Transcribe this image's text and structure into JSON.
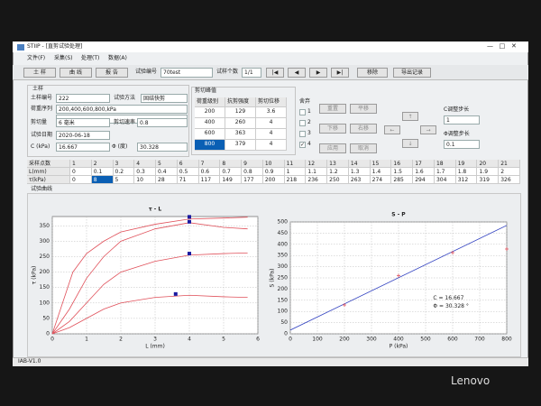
{
  "window": {
    "title": "STIIP - [直剪试验处理]"
  },
  "menu": [
    "文件(F)",
    "采集(S)",
    "处理(T)",
    "数据(A)"
  ],
  "toolbar": {
    "buttons": [
      "土 样",
      "曲 线",
      "报 告"
    ],
    "test_no_label": "试验编号",
    "test_no": "70test",
    "count_label": "试样个数",
    "count": "1/1",
    "nav": [
      "|◀",
      "◀",
      "▶",
      "▶|"
    ],
    "remove": "移除",
    "export": "导出记录"
  },
  "soil": {
    "group": "土样",
    "id_label": "土样编号",
    "id": "222",
    "method_label": "试验方法",
    "method": "固结快剪",
    "loads_label": "荷重序列",
    "loads": "200,400,600,800,kPa",
    "shear_label": "剪切量",
    "shear": "6 毫米",
    "rate_label": "剪切速率",
    "rate": "0.8",
    "date_label": "试验日期",
    "date": "2020-06-18",
    "c_label": "C (kPa)",
    "c": 16.667,
    "phi_label": "Φ (度)",
    "phi": 30.328
  },
  "shear_peak": {
    "group": "剪切峰值",
    "headers": [
      "荷重级别",
      "抗剪强度",
      "剪切位移"
    ],
    "rows": [
      [
        200,
        129,
        3.6
      ],
      [
        400,
        260,
        4
      ],
      [
        600,
        363,
        4
      ],
      [
        800,
        379,
        4
      ]
    ]
  },
  "discard": {
    "label": "舍弃",
    "items": [
      "1",
      "2",
      "3",
      "4"
    ]
  },
  "adjust": {
    "buttons": [
      "重置",
      "平移",
      "下移",
      "右移",
      "应用",
      "取消"
    ],
    "arrows": [
      "↑",
      "←",
      "→",
      "↓"
    ],
    "c_step_label": "C调整步长",
    "c_step": "1",
    "phi_step_label": "Φ调整步长",
    "phi_step": "0.1"
  },
  "samples": {
    "header_label": "采样点数",
    "l_label": "L(mm)",
    "t_label": "τ(kPa)",
    "index": [
      1,
      2,
      3,
      4,
      5,
      6,
      7,
      8,
      9,
      10,
      11,
      12,
      13,
      14,
      15,
      16,
      17,
      18,
      19,
      20,
      21
    ],
    "l": [
      0,
      0.1,
      0.2,
      0.3,
      0.4,
      0.5,
      0.6,
      0.7,
      0.8,
      0.9,
      1,
      1.1,
      1.2,
      1.3,
      1.4,
      1.5,
      1.6,
      1.7,
      1.8,
      1.9,
      2
    ],
    "t": [
      0,
      8,
      5,
      10,
      28,
      71,
      117,
      149,
      177,
      200,
      218,
      236,
      250,
      263,
      274,
      285,
      294,
      304,
      312,
      319,
      326
    ]
  },
  "curves_label": "试验曲线",
  "charts": [
    {
      "type": "line",
      "title": "τ - L",
      "x_label": "L (mm)",
      "y_label": "τ (kPa)",
      "xlim": [
        0,
        6
      ],
      "xticks": [
        0,
        1,
        2,
        3,
        4,
        5,
        6
      ],
      "ylim": [
        0,
        380
      ],
      "yticks": [
        0,
        50,
        100,
        150,
        200,
        250,
        300,
        350
      ],
      "grid": true,
      "marker_color": "#1a1aa0",
      "series": [
        {
          "color": "#e0505a",
          "x": [
            0,
            0.3,
            0.6,
            1,
            1.5,
            2,
            3,
            4,
            5,
            5.7
          ],
          "values": [
            0,
            100,
            200,
            260,
            300,
            330,
            355,
            372,
            375,
            378
          ]
        },
        {
          "color": "#e0505a",
          "x": [
            0,
            0.5,
            1,
            1.5,
            2,
            3,
            4,
            5,
            5.7
          ],
          "values": [
            0,
            80,
            180,
            250,
            300,
            340,
            360,
            345,
            340
          ]
        },
        {
          "color": "#e0505a",
          "x": [
            0,
            0.5,
            1,
            1.5,
            2,
            3,
            4,
            5,
            5.7
          ],
          "values": [
            0,
            40,
            100,
            160,
            200,
            235,
            255,
            260,
            262
          ]
        },
        {
          "color": "#e0505a",
          "x": [
            0,
            0.5,
            1,
            1.5,
            2,
            3,
            4,
            5,
            5.7
          ],
          "values": [
            0,
            20,
            50,
            80,
            100,
            118,
            125,
            120,
            118
          ]
        }
      ]
    },
    {
      "type": "scatter",
      "title": "S - P",
      "x_label": "P (kPa)",
      "y_label": "S (kPa)",
      "xlim": [
        0,
        800
      ],
      "xticks": [
        0,
        100,
        200,
        300,
        400,
        500,
        600,
        700,
        800
      ],
      "ylim": [
        0,
        500
      ],
      "yticks": [
        0,
        50,
        100,
        150,
        200,
        250,
        300,
        350,
        400,
        450,
        500
      ],
      "grid": true,
      "point_color": "#e0505a",
      "fit_color": "#3040c0",
      "annotations": [
        "C = 16.667",
        "Φ = 30.328 °"
      ]
    }
  ],
  "status": "IAB-V1.0",
  "brand": "Lenovo"
}
